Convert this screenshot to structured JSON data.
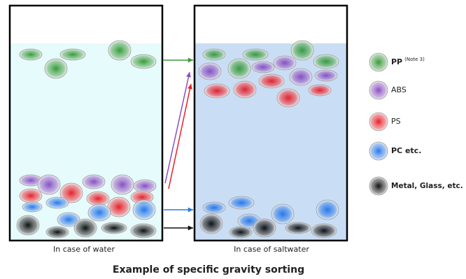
{
  "left_panel": {
    "caption": "In case of water"
  },
  "right_panel": {
    "caption": "In case of saltwater"
  },
  "title": "Example of specific gravity sorting",
  "legend": [
    {
      "label": "PP",
      "note": "(Note 3)",
      "color": "#3a9a3a"
    },
    {
      "label": "ABS",
      "color": "#8a4fc0"
    },
    {
      "label": "PS",
      "color": "#e8202a"
    },
    {
      "label": "PC etc.",
      "color": "#2a78e8"
    },
    {
      "label": "Metal, Glass, etc.",
      "color": "#111111"
    }
  ]
}
